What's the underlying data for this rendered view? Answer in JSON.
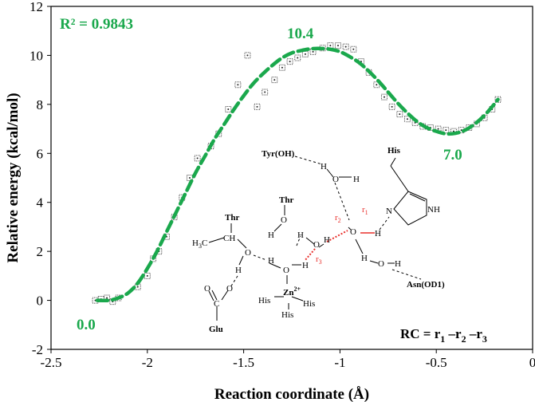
{
  "chart_data": {
    "type": "scatter",
    "xlabel": "Reaction coordinate (Å)",
    "ylabel": "Relative energy (kcal/mol)",
    "xlim": [
      -2.5,
      0
    ],
    "ylim": [
      -2,
      12
    ],
    "x_ticks": [
      "-2.5",
      "-2",
      "-1.5",
      "-1",
      "-0.5",
      "0"
    ],
    "y_ticks": [
      "-2",
      "0",
      "2",
      "4",
      "6",
      "8",
      "10",
      "12"
    ],
    "grid": false,
    "series": [
      {
        "role": "data points",
        "marker": "dotted square",
        "points": [
          [
            -2.27,
            0.0
          ],
          [
            -2.24,
            0.05
          ],
          [
            -2.21,
            0.1
          ],
          [
            -2.18,
            -0.05
          ],
          [
            -2.15,
            0.1
          ],
          [
            -2.05,
            0.55
          ],
          [
            -2.0,
            1.0
          ],
          [
            -1.97,
            1.7
          ],
          [
            -1.94,
            2.0
          ],
          [
            -1.9,
            2.6
          ],
          [
            -1.86,
            3.4
          ],
          [
            -1.82,
            4.2
          ],
          [
            -1.78,
            5.0
          ],
          [
            -1.74,
            5.8
          ],
          [
            -1.67,
            6.3
          ],
          [
            -1.63,
            6.8
          ],
          [
            -1.58,
            7.8
          ],
          [
            -1.53,
            8.8
          ],
          [
            -1.48,
            10.0
          ],
          [
            -1.43,
            7.9
          ],
          [
            -1.39,
            8.5
          ],
          [
            -1.34,
            9.0
          ],
          [
            -1.3,
            9.5
          ],
          [
            -1.26,
            9.75
          ],
          [
            -1.22,
            9.9
          ],
          [
            -1.18,
            10.05
          ],
          [
            -1.14,
            10.15
          ],
          [
            -1.09,
            10.3
          ],
          [
            -1.05,
            10.4
          ],
          [
            -1.01,
            10.4
          ],
          [
            -0.97,
            10.35
          ],
          [
            -0.93,
            10.25
          ],
          [
            -0.89,
            9.75
          ],
          [
            -0.85,
            9.3
          ],
          [
            -0.81,
            8.8
          ],
          [
            -0.77,
            8.3
          ],
          [
            -0.73,
            7.9
          ],
          [
            -0.69,
            7.6
          ],
          [
            -0.65,
            7.4
          ],
          [
            -0.61,
            7.25
          ],
          [
            -0.57,
            7.1
          ],
          [
            -0.53,
            7.05
          ],
          [
            -0.49,
            7.0
          ],
          [
            -0.45,
            6.95
          ],
          [
            -0.41,
            6.9
          ],
          [
            -0.37,
            6.95
          ],
          [
            -0.33,
            7.05
          ],
          [
            -0.29,
            7.2
          ],
          [
            -0.25,
            7.45
          ],
          [
            -0.21,
            7.8
          ],
          [
            -0.18,
            8.2
          ]
        ]
      },
      {
        "role": "fitted curve",
        "line": "dashed",
        "points": [
          [
            -2.26,
            0.0
          ],
          [
            -2.2,
            0.0
          ],
          [
            -2.15,
            0.1
          ],
          [
            -2.1,
            0.3
          ],
          [
            -2.05,
            0.7
          ],
          [
            -2.0,
            1.3
          ],
          [
            -1.95,
            2.0
          ],
          [
            -1.9,
            2.8
          ],
          [
            -1.85,
            3.6
          ],
          [
            -1.8,
            4.4
          ],
          [
            -1.75,
            5.2
          ],
          [
            -1.7,
            5.9
          ],
          [
            -1.65,
            6.6
          ],
          [
            -1.6,
            7.2
          ],
          [
            -1.55,
            7.8
          ],
          [
            -1.5,
            8.35
          ],
          [
            -1.45,
            8.85
          ],
          [
            -1.4,
            9.25
          ],
          [
            -1.35,
            9.6
          ],
          [
            -1.3,
            9.9
          ],
          [
            -1.25,
            10.1
          ],
          [
            -1.2,
            10.2
          ],
          [
            -1.15,
            10.27
          ],
          [
            -1.1,
            10.28
          ],
          [
            -1.05,
            10.25
          ],
          [
            -1.0,
            10.15
          ],
          [
            -0.95,
            9.95
          ],
          [
            -0.9,
            9.7
          ],
          [
            -0.85,
            9.35
          ],
          [
            -0.8,
            8.95
          ],
          [
            -0.75,
            8.5
          ],
          [
            -0.7,
            8.05
          ],
          [
            -0.65,
            7.65
          ],
          [
            -0.6,
            7.3
          ],
          [
            -0.55,
            7.05
          ],
          [
            -0.5,
            6.9
          ],
          [
            -0.45,
            6.8
          ],
          [
            -0.4,
            6.82
          ],
          [
            -0.35,
            6.95
          ],
          [
            -0.3,
            7.2
          ],
          [
            -0.25,
            7.55
          ],
          [
            -0.2,
            8.0
          ],
          [
            -0.18,
            8.2
          ]
        ]
      }
    ],
    "annotations": {
      "r2": "R² = 0.9843",
      "peak": "10.4",
      "min": "7.0",
      "start": "0.0"
    },
    "colors": {
      "fit": "#1aa84c",
      "points": "#333333",
      "bond_red": "#e8302c"
    }
  },
  "diagram": {
    "labels": {
      "tyr": "Tyr(OH)",
      "his_top": "His",
      "nh": "NH",
      "n": "N",
      "thr_mid": "Thr",
      "thr_left": "Thr",
      "ch": "CH",
      "h3c": "H",
      "h3c_sub": "3",
      "h3c_c": "C",
      "glu": "Glu",
      "zn": "Zn",
      "zn_charge": "2+",
      "his_left": "His",
      "his_right": "His",
      "his_bottom": "His",
      "asn": "Asn(OD1)",
      "o": "O",
      "h": "H",
      "c": "C",
      "r1": "r",
      "r2": "r",
      "r3": "r",
      "sub1": "1",
      "sub2": "2",
      "sub3": "3"
    },
    "rc_formula": {
      "prefix": "RC = r",
      "s1": "1",
      "m1": " –r",
      "s2": "2",
      "m2": " –r",
      "s3": "3"
    }
  }
}
